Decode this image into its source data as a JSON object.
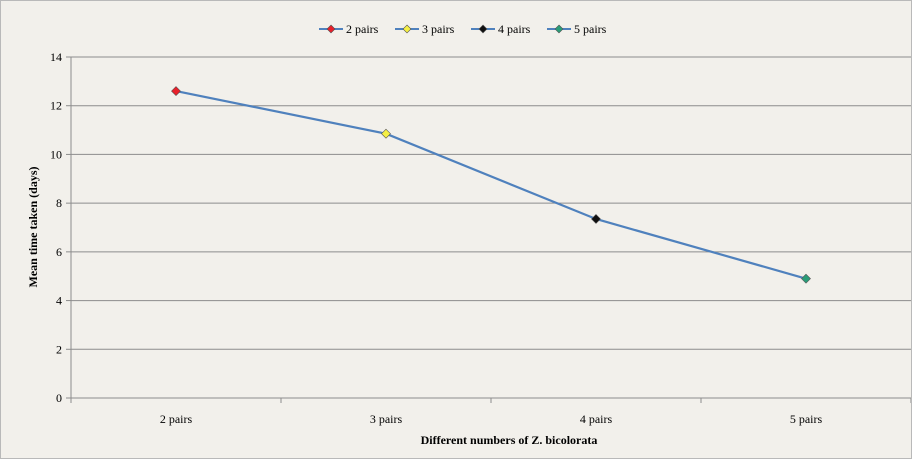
{
  "chart_data": {
    "type": "line",
    "title": "",
    "xlabel": "Different numbers of Z. bicolorata",
    "ylabel": "Mean time taken (days)",
    "categories": [
      "2 pairs",
      "3 pairs",
      "4 pairs",
      "5 pairs"
    ],
    "values": [
      12.6,
      10.85,
      7.35,
      4.9
    ],
    "ylim": [
      0,
      14
    ],
    "yticks": [
      "0",
      "2",
      "4",
      "6",
      "8",
      "10",
      "12",
      "14"
    ],
    "grid": true,
    "legend_position": "top",
    "line_color": "#4f81bd",
    "legend": [
      {
        "label": "2 pairs",
        "color": "#e8202a"
      },
      {
        "label": "3 pairs",
        "color": "#f5ef43"
      },
      {
        "label": "4 pairs",
        "color": "#0f0f0f"
      },
      {
        "label": "5 pairs",
        "color": "#2a9d78"
      }
    ]
  }
}
